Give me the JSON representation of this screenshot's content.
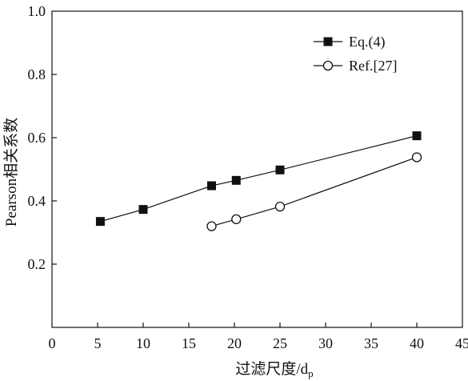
{
  "chart_data": {
    "type": "line",
    "title": "",
    "xlabel": "过滤尺度/d",
    "xlabel_sub": "p",
    "ylabel": "Pearson相关系数",
    "xlim": [
      0,
      45
    ],
    "ylim": [
      0.0,
      1.0
    ],
    "x_ticks": [
      0,
      5,
      10,
      15,
      20,
      25,
      30,
      35,
      40,
      45
    ],
    "y_ticks": [
      0.2,
      0.4,
      0.6,
      0.8,
      1.0
    ],
    "x_tick_labels": [
      "0",
      "5",
      "10",
      "15",
      "20",
      "25",
      "30",
      "35",
      "40",
      "45"
    ],
    "y_tick_labels": [
      "0.2",
      "0.4",
      "0.6",
      "0.8",
      "1.0"
    ],
    "grid": false,
    "legend_position": "top-right",
    "series": [
      {
        "name": "Eq.(4)",
        "marker": "filled-square",
        "color": "#111111",
        "x": [
          5.3,
          10,
          17.5,
          20.2,
          25,
          40
        ],
        "y": [
          0.335,
          0.373,
          0.448,
          0.465,
          0.498,
          0.606
        ]
      },
      {
        "name": "Ref.[27]",
        "marker": "open-circle",
        "color": "#111111",
        "x": [
          17.5,
          20.2,
          25,
          40
        ],
        "y": [
          0.32,
          0.342,
          0.382,
          0.538
        ]
      }
    ]
  }
}
